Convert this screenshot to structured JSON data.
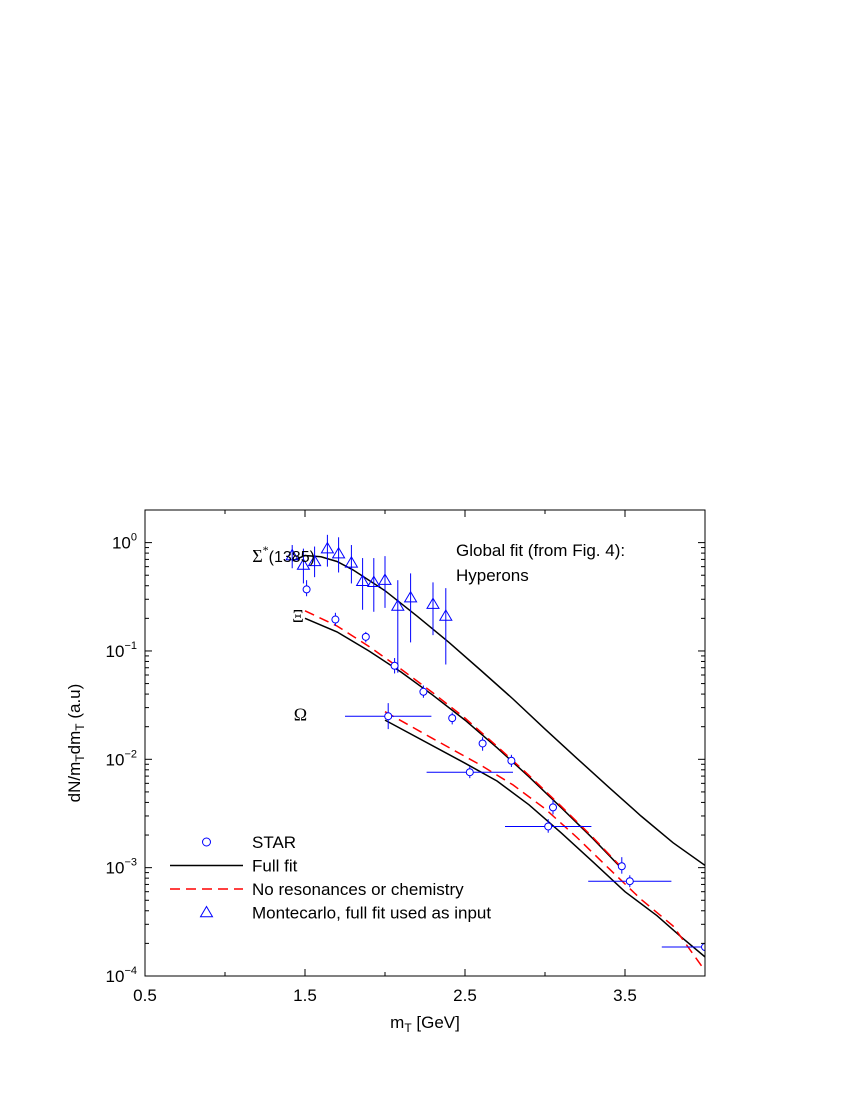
{
  "chart_data": {
    "type": "scatter",
    "xlabel": "m",
    "xlabel_sub": "T",
    "xlabel_rest": " [GeV]",
    "ylabel_parts": [
      "dN/m",
      "T",
      "dm",
      "T",
      " (a.u)"
    ],
    "xlim": [
      0.5,
      4.0
    ],
    "ylim": [
      0.0001,
      2.0
    ],
    "yscale": "log",
    "x_ticks": [
      {
        "value": 0.5,
        "label": "0.5"
      },
      {
        "value": 1.5,
        "label": "1.5"
      },
      {
        "value": 2.5,
        "label": "2.5"
      },
      {
        "value": 3.5,
        "label": "3.5"
      }
    ],
    "y_ticks": [
      {
        "value": 1,
        "base": "10",
        "exp": "0"
      },
      {
        "value": 0.1,
        "base": "10",
        "exp": "−1"
      },
      {
        "value": 0.01,
        "base": "10",
        "exp": "−2"
      },
      {
        "value": 0.001,
        "base": "10",
        "exp": "−3"
      },
      {
        "value": 0.0001,
        "base": "10",
        "exp": "−4"
      }
    ],
    "grid": false,
    "annotation_lines": [
      "Global fit (from Fig. 4):",
      "Hyperons"
    ],
    "particle_labels": [
      {
        "text": "Σ",
        "sup": "*",
        "rest": "(1385)",
        "x": 1.17,
        "y": 0.75
      },
      {
        "text": "Ξ",
        "sup": "",
        "rest": "",
        "x": 1.42,
        "y": 0.21
      },
      {
        "text": "Ω",
        "sup": "",
        "rest": "",
        "x": 1.43,
        "y": 0.026
      }
    ],
    "legend": {
      "position": "bottom-left",
      "entries": [
        {
          "label": "STAR",
          "symbol": "circle",
          "color": "#0000ff"
        },
        {
          "label": "Full fit",
          "symbol": "solid-line",
          "color": "#000000"
        },
        {
          "label": "No resonances or chemistry",
          "symbol": "dashed-line",
          "color": "#ff0000"
        },
        {
          "label": "Montecarlo, full fit used as input",
          "symbol": "triangle",
          "color": "#0000ff"
        }
      ]
    },
    "series": [
      {
        "kind": "full-fit",
        "color": "#000000",
        "dash": "",
        "points": [
          [
            1.42,
            0.68
          ],
          [
            1.5,
            0.76
          ],
          [
            1.6,
            0.74
          ],
          [
            1.7,
            0.67
          ],
          [
            1.8,
            0.56
          ],
          [
            2.0,
            0.36
          ],
          [
            2.2,
            0.21
          ],
          [
            2.4,
            0.12
          ],
          [
            2.6,
            0.066
          ],
          [
            2.8,
            0.036
          ],
          [
            3.0,
            0.019
          ],
          [
            3.2,
            0.0102
          ],
          [
            3.4,
            0.0055
          ],
          [
            3.6,
            0.003
          ],
          [
            3.8,
            0.0017
          ],
          [
            4.0,
            0.00105
          ]
        ]
      },
      {
        "kind": "full-fit",
        "color": "#000000",
        "dash": "",
        "points": [
          [
            1.5,
            0.2
          ],
          [
            1.7,
            0.15
          ],
          [
            1.9,
            0.1
          ],
          [
            2.1,
            0.064
          ],
          [
            2.3,
            0.039
          ],
          [
            2.5,
            0.023
          ],
          [
            2.7,
            0.0128
          ],
          [
            2.9,
            0.0069
          ],
          [
            3.1,
            0.0036
          ],
          [
            3.3,
            0.00185
          ],
          [
            3.48,
            0.00098
          ]
        ]
      },
      {
        "kind": "no-resonances",
        "color": "#ff0000",
        "dash": "10,6",
        "points": [
          [
            1.5,
            0.235
          ],
          [
            1.7,
            0.17
          ],
          [
            1.9,
            0.11
          ],
          [
            2.1,
            0.068
          ],
          [
            2.3,
            0.041
          ],
          [
            2.5,
            0.024
          ],
          [
            2.7,
            0.0132
          ],
          [
            2.9,
            0.0071
          ],
          [
            3.1,
            0.0037
          ],
          [
            3.3,
            0.0019
          ],
          [
            3.48,
            0.001
          ]
        ]
      },
      {
        "kind": "full-fit",
        "color": "#000000",
        "dash": "",
        "points": [
          [
            2.0,
            0.023
          ],
          [
            2.5,
            0.0092
          ],
          [
            2.7,
            0.0063
          ],
          [
            2.9,
            0.0038
          ],
          [
            3.1,
            0.0021
          ],
          [
            3.3,
            0.00113
          ],
          [
            3.5,
            0.0006
          ],
          [
            3.7,
            0.00036
          ],
          [
            3.85,
            0.00023
          ],
          [
            4.0,
            0.00015
          ]
        ]
      },
      {
        "kind": "no-resonances",
        "color": "#ff0000",
        "dash": "10,6",
        "points": [
          [
            2.0,
            0.0275
          ],
          [
            2.3,
            0.0155
          ],
          [
            2.6,
            0.0088
          ],
          [
            2.8,
            0.0058
          ],
          [
            3.0,
            0.0035
          ],
          [
            3.2,
            0.0019
          ],
          [
            3.4,
            0.00098
          ],
          [
            3.6,
            0.00051
          ],
          [
            3.8,
            0.00029
          ],
          [
            4.0,
            0.000112
          ]
        ]
      }
    ],
    "montecarlo_points": [
      {
        "x": 1.42,
        "y": 0.76,
        "err_lo": 0.58,
        "err_hi": 0.95
      },
      {
        "x": 1.49,
        "y": 0.62,
        "err_lo": 0.42,
        "err_hi": 0.88
      },
      {
        "x": 1.56,
        "y": 0.67,
        "err_lo": 0.48,
        "err_hi": 0.92
      },
      {
        "x": 1.64,
        "y": 0.88,
        "err_lo": 0.6,
        "err_hi": 1.18
      },
      {
        "x": 1.71,
        "y": 0.79,
        "err_lo": 0.53,
        "err_hi": 1.12
      },
      {
        "x": 1.79,
        "y": 0.65,
        "err_lo": 0.42,
        "err_hi": 0.95
      },
      {
        "x": 1.86,
        "y": 0.44,
        "err_lo": 0.24,
        "err_hi": 0.72
      },
      {
        "x": 1.93,
        "y": 0.43,
        "err_lo": 0.23,
        "err_hi": 0.72
      },
      {
        "x": 2.0,
        "y": 0.45,
        "err_lo": 0.25,
        "err_hi": 0.75
      },
      {
        "x": 2.08,
        "y": 0.26,
        "err_lo": 0.063,
        "err_hi": 0.45
      },
      {
        "x": 2.16,
        "y": 0.31,
        "err_lo": 0.12,
        "err_hi": 0.52
      },
      {
        "x": 2.3,
        "y": 0.27,
        "err_lo": 0.14,
        "err_hi": 0.43
      },
      {
        "x": 2.38,
        "y": 0.21,
        "err_lo": 0.075,
        "err_hi": 0.38
      }
    ],
    "star_points": [
      {
        "x": 1.51,
        "y": 0.37,
        "xerr": 0,
        "err_lo": 0.32,
        "err_hi": 0.45
      },
      {
        "x": 1.69,
        "y": 0.195,
        "xerr": 0,
        "err_lo": 0.17,
        "err_hi": 0.225
      },
      {
        "x": 1.88,
        "y": 0.135,
        "xerr": 0,
        "err_lo": 0.12,
        "err_hi": 0.15
      },
      {
        "x": 2.06,
        "y": 0.073,
        "xerr": 0,
        "err_lo": 0.062,
        "err_hi": 0.086
      },
      {
        "x": 2.24,
        "y": 0.042,
        "xerr": 0,
        "err_lo": 0.037,
        "err_hi": 0.048
      },
      {
        "x": 2.42,
        "y": 0.024,
        "xerr": 0,
        "err_lo": 0.021,
        "err_hi": 0.027
      },
      {
        "x": 2.61,
        "y": 0.014,
        "xerr": 0,
        "err_lo": 0.012,
        "err_hi": 0.016
      },
      {
        "x": 2.79,
        "y": 0.0097,
        "xerr": 0,
        "err_lo": 0.0085,
        "err_hi": 0.011
      },
      {
        "x": 3.05,
        "y": 0.0036,
        "xerr": 0,
        "err_lo": 0.0031,
        "err_hi": 0.0042
      },
      {
        "x": 3.48,
        "y": 0.00103,
        "xerr": 0,
        "err_lo": 0.00088,
        "err_hi": 0.00125
      },
      {
        "x": 2.02,
        "y": 0.025,
        "xerr": 0.27,
        "err_lo": 0.019,
        "err_hi": 0.033
      },
      {
        "x": 2.53,
        "y": 0.0076,
        "xerr": 0.27,
        "err_lo": 0.0067,
        "err_hi": 0.0086
      },
      {
        "x": 3.02,
        "y": 0.0024,
        "xerr": 0.27,
        "err_lo": 0.0021,
        "err_hi": 0.0028
      },
      {
        "x": 3.53,
        "y": 0.00075,
        "xerr": 0.26,
        "err_lo": 0.00066,
        "err_hi": 0.00085
      },
      {
        "x": 4.0,
        "y": 0.000185,
        "xerr": 0.27,
        "err_lo": 0.00017,
        "err_hi": 0.0002
      }
    ]
  }
}
